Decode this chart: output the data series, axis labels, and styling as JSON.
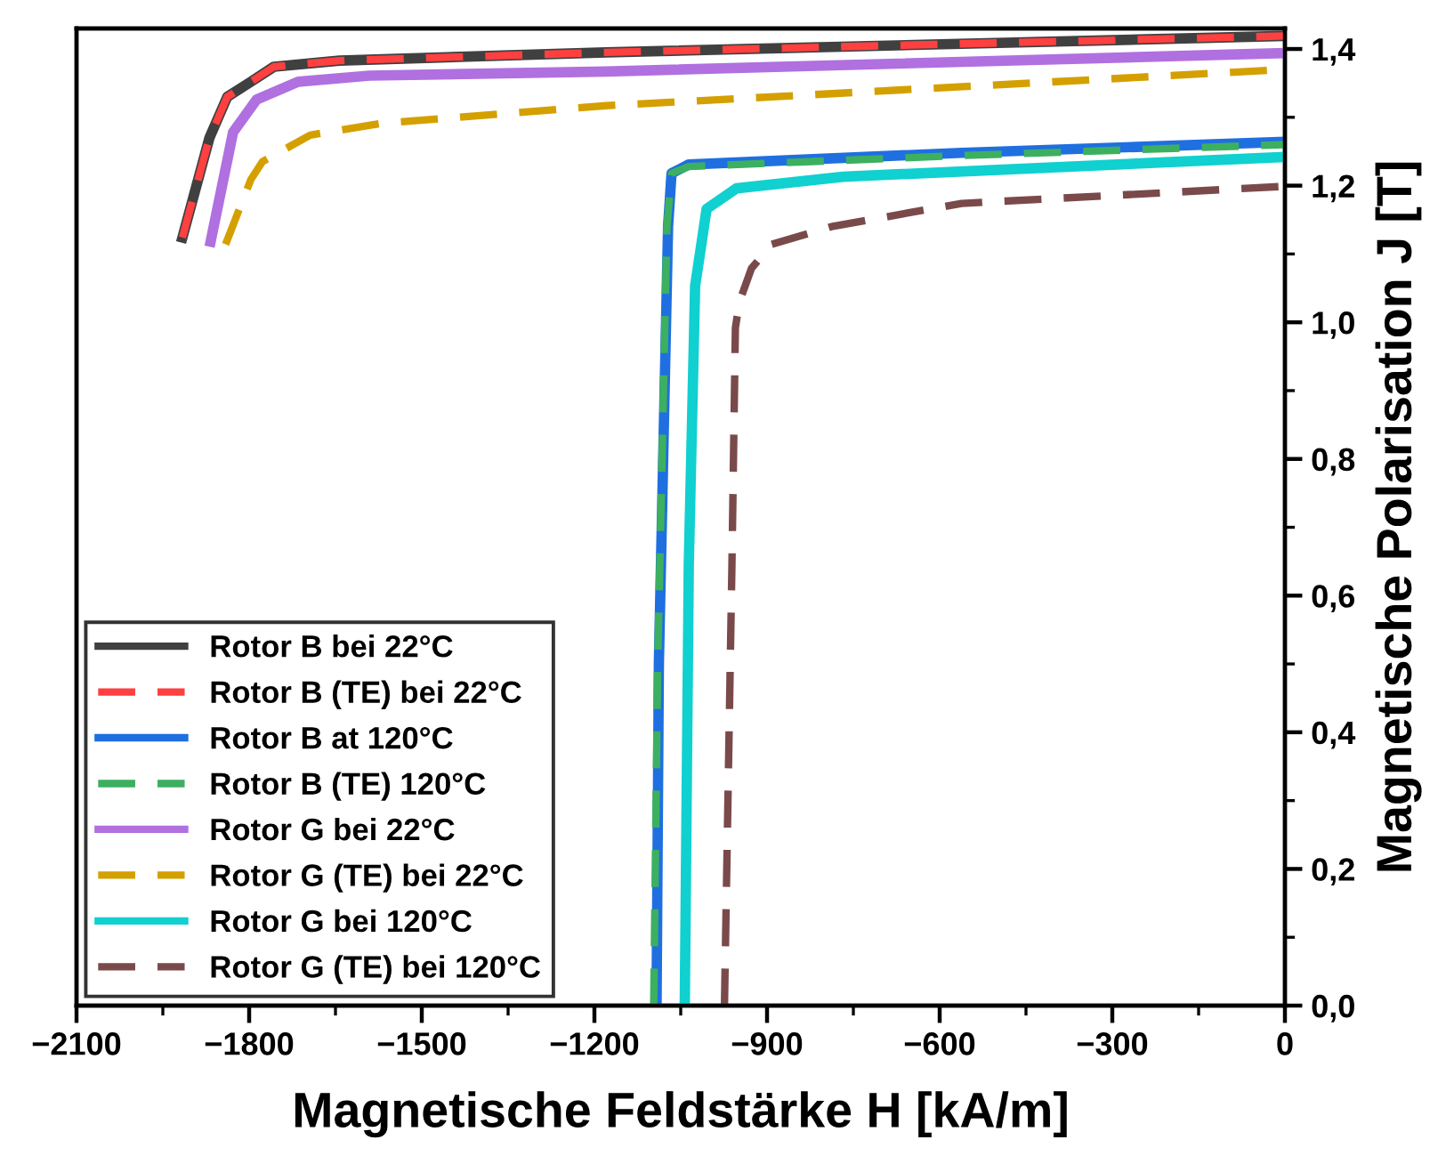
{
  "chart_data": {
    "type": "line",
    "xlabel": "Magnetische Feldstärke H [kA/m]",
    "y2label": "Magnetische Polarisation J [T]",
    "xlim": [
      -2100,
      0
    ],
    "y2lim": [
      0,
      1.43
    ],
    "xticks": [
      {
        "value": -2100,
        "label": "−2100"
      },
      {
        "value": -1950,
        "label": null
      },
      {
        "value": -1800,
        "label": "−1800"
      },
      {
        "value": -1650,
        "label": null
      },
      {
        "value": -1500,
        "label": "−1500"
      },
      {
        "value": -1350,
        "label": null
      },
      {
        "value": -1200,
        "label": "−1200"
      },
      {
        "value": -1050,
        "label": null
      },
      {
        "value": -900,
        "label": "−900"
      },
      {
        "value": -750,
        "label": null
      },
      {
        "value": -600,
        "label": "−600"
      },
      {
        "value": -450,
        "label": null
      },
      {
        "value": -300,
        "label": "−300"
      },
      {
        "value": -150,
        "label": null
      },
      {
        "value": 0,
        "label": "0"
      }
    ],
    "y2ticks": [
      {
        "value": 0,
        "label": "0,0"
      },
      {
        "value": 0.1,
        "label": null
      },
      {
        "value": 0.2,
        "label": "0,2"
      },
      {
        "value": 0.3,
        "label": null
      },
      {
        "value": 0.4,
        "label": "0,4"
      },
      {
        "value": 0.5,
        "label": null
      },
      {
        "value": 0.6,
        "label": "0,6"
      },
      {
        "value": 0.7,
        "label": null
      },
      {
        "value": 0.8,
        "label": "0,8"
      },
      {
        "value": 0.9,
        "label": null
      },
      {
        "value": 1.0,
        "label": "1,0"
      },
      {
        "value": 1.1,
        "label": null
      },
      {
        "value": 1.2,
        "label": "1,2"
      },
      {
        "value": 1.3,
        "label": null
      },
      {
        "value": 1.4,
        "label": "1,4"
      }
    ],
    "grid": false,
    "legend": "bottom left",
    "marker": "none",
    "series": [
      {
        "name": "Rotor B bei 22°C",
        "color": "#404040",
        "line_style": "solid",
        "axis": "y2",
        "x": [
          -1916,
          -1869,
          -1838,
          -1797,
          -1757,
          -1643,
          -1180,
          0
        ],
        "values": [
          1.124,
          1.27,
          1.33,
          1.352,
          1.374,
          1.383,
          1.395,
          1.419
        ]
      },
      {
        "name": "Rotor B (TE) bei 22°C",
        "color": "#ff4040",
        "line_style": "dashed",
        "axis": "y2",
        "x": [
          -1916,
          -1869,
          -1838,
          -1797,
          -1757,
          -1643,
          -1180,
          0
        ],
        "values": [
          1.124,
          1.27,
          1.33,
          1.352,
          1.374,
          1.383,
          1.395,
          1.419
        ]
      },
      {
        "name": "Rotor B at 120°C",
        "color": "#1f6fe0",
        "line_style": "solid",
        "axis": "y2",
        "x": [
          -1092,
          -1088,
          -1072,
          -1066,
          -1036,
          -562,
          0
        ],
        "values": [
          0,
          0.5,
          1.14,
          1.218,
          1.231,
          1.248,
          1.264
        ]
      },
      {
        "name": "Rotor B (TE) 120°C",
        "color": "#3cb060",
        "line_style": "dashed",
        "axis": "y2",
        "x": [
          -1097,
          -1090,
          -1074,
          -1066,
          -1036,
          -562,
          0
        ],
        "values": [
          0,
          0.5,
          1.14,
          1.218,
          1.228,
          1.244,
          1.26
        ]
      },
      {
        "name": "Rotor G bei 22°C",
        "color": "#b070e0",
        "line_style": "solid",
        "axis": "y2",
        "x": [
          -1867,
          -1828,
          -1787,
          -1715,
          -1591,
          -1180,
          0
        ],
        "values": [
          1.118,
          1.278,
          1.326,
          1.352,
          1.361,
          1.367,
          1.394
        ]
      },
      {
        "name": "Rotor G (TE) bei 22°C",
        "color": "#d4a000",
        "line_style": "dashed",
        "axis": "y2",
        "x": [
          -1841,
          -1797,
          -1777,
          -1694,
          -1572,
          -1180,
          0
        ],
        "values": [
          1.114,
          1.209,
          1.235,
          1.274,
          1.291,
          1.317,
          1.37
        ]
      },
      {
        "name": "Rotor G bei 120°C",
        "color": "#10d0d0",
        "line_style": "solid",
        "axis": "y2",
        "x": [
          -1043,
          -1036,
          -1025,
          -1005,
          -953,
          -768,
          0
        ],
        "values": [
          0,
          0.646,
          1.053,
          1.166,
          1.196,
          1.213,
          1.242
        ]
      },
      {
        "name": "Rotor G (TE) bei 120°C",
        "color": "#7a4a4a",
        "line_style": "dashed",
        "axis": "y2",
        "x": [
          -974,
          -961,
          -955,
          -948,
          -927,
          -892,
          -788,
          -562,
          0
        ],
        "values": [
          0,
          0.646,
          0.992,
          1.03,
          1.079,
          1.114,
          1.14,
          1.174,
          1.199
        ]
      }
    ]
  }
}
